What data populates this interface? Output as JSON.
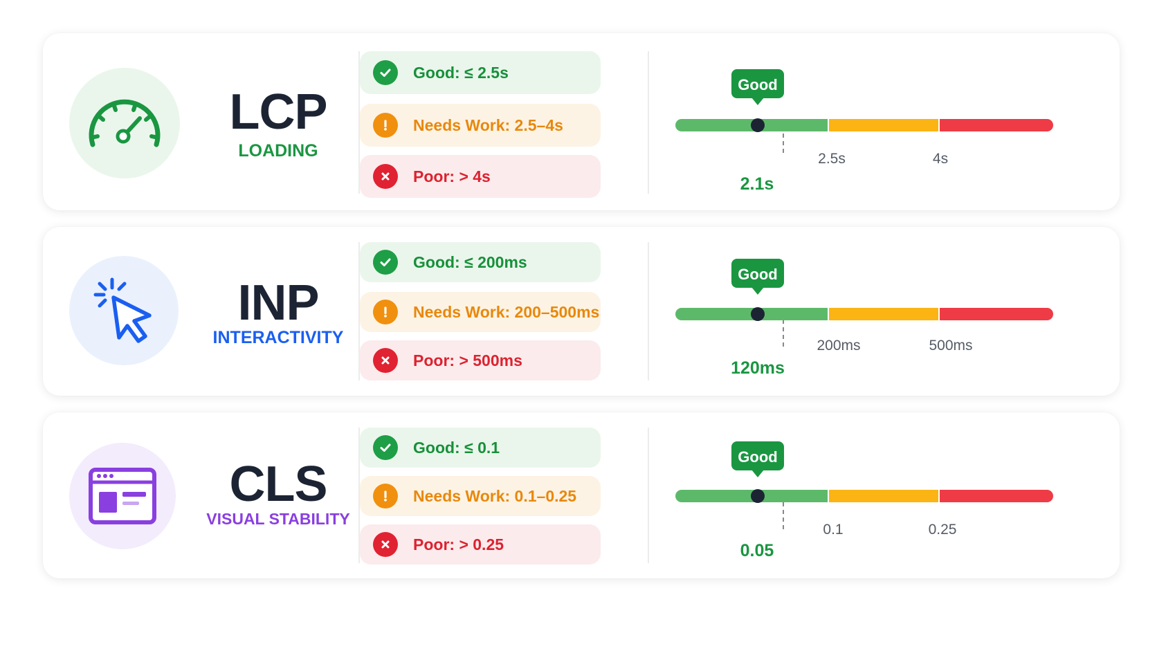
{
  "metrics": [
    {
      "key": "lcp",
      "title": "LCP",
      "subtitle": "LOADING",
      "icon": "speedometer-icon",
      "accent": "#1a9641",
      "icon_bg": "#eaf6ec",
      "thresholds": {
        "good": "Good: ≤ 2.5s",
        "needs_work": "Needs Work: 2.5–4s",
        "poor": "Poor: > 4s"
      },
      "scale": {
        "marker_label": "Good",
        "value": "2.1s",
        "tick_1": "2.5s",
        "tick_2": "4s"
      }
    },
    {
      "key": "inp",
      "title": "INP",
      "subtitle": "INTERACTIVITY",
      "icon": "cursor-click-icon",
      "accent": "#1a5ff0",
      "icon_bg": "#eaf1fd",
      "thresholds": {
        "good": "Good: ≤ 200ms",
        "needs_work": "Needs Work: 200–500ms",
        "poor": "Poor: > 500ms"
      },
      "scale": {
        "marker_label": "Good",
        "value": "120ms",
        "tick_1": "200ms",
        "tick_2": "500ms"
      }
    },
    {
      "key": "cls",
      "title": "CLS",
      "subtitle": "VISUAL STABILITY",
      "icon": "browser-layout-icon",
      "accent": "#8a3fe0",
      "icon_bg": "#f3ecfc",
      "thresholds": {
        "good": "Good: ≤ 0.1",
        "needs_work": "Needs Work: 0.1–0.25",
        "poor": "Poor: > 0.25"
      },
      "scale": {
        "marker_label": "Good",
        "value": "0.05",
        "tick_1": "0.1",
        "tick_2": "0.25"
      }
    }
  ],
  "colors": {
    "good": "#1e9e46",
    "needs_work": "#f0900e",
    "poor": "#e02232",
    "bar_good": "#5db96a",
    "bar_warn": "#fbb414",
    "bar_poor": "#ee3b46",
    "title": "#1c2434"
  }
}
